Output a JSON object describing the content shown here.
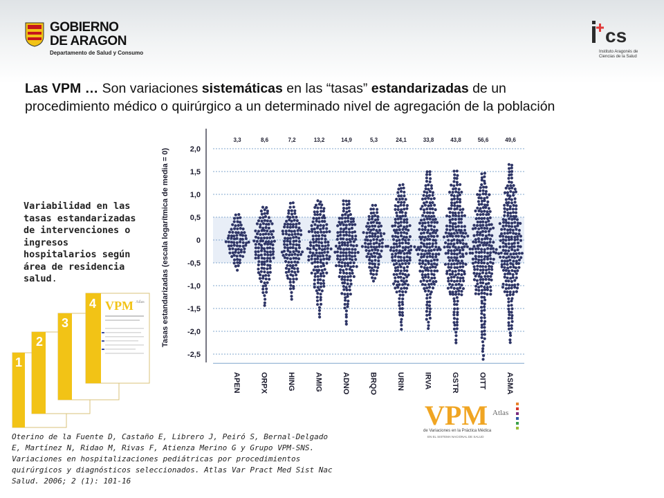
{
  "header": {
    "aragon_logo": {
      "line1": "GOBIERNO",
      "line2": "DE ARAGON",
      "line3": "Departamento de Salud y Consumo"
    },
    "ics_logo": {
      "mark": "i+cs",
      "sub": "Instituto Aragonés de Ciencias de la Salud"
    }
  },
  "headline": {
    "p1": "Las VPM … ",
    "p2": "Son variaciones ",
    "p3": "sistemáticas",
    "p4": " en las “tasas” ",
    "p5": "estandarizadas",
    "p6": " de un",
    "line2": "procedimiento médico o quirúrgico a un determinado nivel de agregación de la población"
  },
  "side_text": {
    "main": "Variabilidad en las tasas estandarizadas de intervenciones o ingresos hospitalarios según área de residencia salud",
    "dot": "."
  },
  "citation": "Oterino de la Fuente D, Castaño E, Librero J, Peiró S, Bernal-Delgado E, Martínez N, Ridao M, Rivas F, Atienza Merino G y Grupo VPM-SNS. Variaciones en hospitalizaciones pediátricas por procedimientos quirúrgicos y diagnósticos seleccionados. Atlas Var Pract Med Sist Nac Salud. 2006; 2 (1): 101-16",
  "booklets": {
    "numbers": [
      "1",
      "2",
      "3",
      "4"
    ],
    "cover_title": "VPM",
    "cover_sub": "Atlas"
  },
  "vpm_logo": {
    "title": "VPM",
    "atlas": "Atlas",
    "line1": "de Variaciones en la Práctica Médica",
    "line2": "EN EL SISTEMA NACIONAL DE SALUD"
  },
  "colors": {
    "dots": "#2e3566",
    "band": "#e8eef7",
    "grid": "#7fa4cc",
    "booklet_yellow": "#f2c316",
    "vpm_orange": "#f0a523"
  },
  "chart_data": {
    "type": "scatter",
    "ylabel": "Tasas estandarizadas (escala logarítmica de media = 0)",
    "ylim": [
      -2.7,
      2.1
    ],
    "yticks": [
      "2,0",
      "1,5",
      "1,0",
      "0,5",
      "0",
      "-0,5",
      "-1,0",
      "-1,5",
      "-2,0",
      "-2,5"
    ],
    "ytick_values": [
      2.0,
      1.5,
      1.0,
      0.5,
      0,
      -0.5,
      -1.0,
      -1.5,
      -2.0,
      -2.5
    ],
    "band": [
      -0.5,
      0.5
    ],
    "categories": [
      "APEN",
      "ORPX",
      "HING",
      "AMIG",
      "ADNO",
      "BRQO",
      "URIN",
      "IRVA",
      "GSTR",
      "OITT",
      "ASMA"
    ],
    "top_values": [
      "3,3",
      "8,6",
      "7,2",
      "13,2",
      "14,9",
      "5,3",
      "24,1",
      "33,8",
      "43,8",
      "56,6",
      "49,6"
    ],
    "ranges": [
      [
        -0.65,
        0.55
      ],
      [
        -1.45,
        0.75
      ],
      [
        -1.3,
        0.8
      ],
      [
        -1.7,
        0.9
      ],
      [
        -1.85,
        0.9
      ],
      [
        -0.9,
        0.8
      ],
      [
        -1.95,
        1.25
      ],
      [
        -1.95,
        1.55
      ],
      [
        -2.25,
        1.55
      ],
      [
        -2.6,
        1.45
      ],
      [
        -2.25,
        1.65
      ]
    ],
    "grid": true
  }
}
